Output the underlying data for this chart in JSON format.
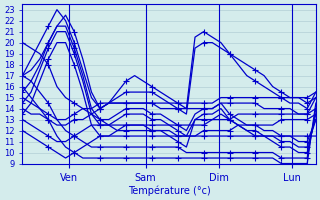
{
  "xlabel": "Température (°c)",
  "xlim": [
    0,
    100
  ],
  "ylim": [
    9,
    23.5
  ],
  "yticks": [
    9,
    10,
    11,
    12,
    13,
    14,
    15,
    16,
    17,
    18,
    19,
    20,
    21,
    22,
    23
  ],
  "xtick_positions": [
    16,
    42,
    67,
    92
  ],
  "xtick_labels": [
    "Ven",
    "Sam",
    "Dim",
    "Lun"
  ],
  "bg_color": "#d4ecec",
  "grid_color": "#aac8d0",
  "line_color": "#0000cc",
  "marker": "+",
  "markersize": 4,
  "linewidth": 0.9,
  "series": [
    [
      17.0,
      18.5,
      20.0,
      21.5,
      23.0,
      22.0,
      20.0,
      17.5,
      15.0,
      14.0,
      14.5,
      15.5,
      16.5,
      17.0,
      16.5,
      16.0,
      15.5,
      15.0,
      14.5,
      14.0,
      20.5,
      21.0,
      20.5,
      20.0,
      19.0,
      18.0,
      17.0,
      16.5,
      16.0,
      15.5,
      15.0,
      14.5,
      14.5,
      14.0,
      15.5
    ],
    [
      17.0,
      17.5,
      18.5,
      20.0,
      21.5,
      22.5,
      21.0,
      18.5,
      15.5,
      14.0,
      14.5,
      15.0,
      15.5,
      15.5,
      15.5,
      15.5,
      15.0,
      14.5,
      14.0,
      13.5,
      19.5,
      20.0,
      20.0,
      19.5,
      19.0,
      18.5,
      18.0,
      17.5,
      17.0,
      16.0,
      15.5,
      15.0,
      15.0,
      14.5,
      15.0
    ],
    [
      15.5,
      16.5,
      18.0,
      20.0,
      21.5,
      21.5,
      19.5,
      17.0,
      14.0,
      13.0,
      13.0,
      13.5,
      14.0,
      14.0,
      14.0,
      13.5,
      13.5,
      13.0,
      12.5,
      12.0,
      13.5,
      14.0,
      14.0,
      14.5,
      13.5,
      13.0,
      12.5,
      12.5,
      12.0,
      12.0,
      11.5,
      11.5,
      11.0,
      11.0,
      13.0
    ],
    [
      14.5,
      15.5,
      17.5,
      19.5,
      21.0,
      21.0,
      19.0,
      16.5,
      13.5,
      12.5,
      12.5,
      13.0,
      13.5,
      13.5,
      13.5,
      13.0,
      13.0,
      12.5,
      12.0,
      11.5,
      13.0,
      13.5,
      13.5,
      14.0,
      13.0,
      12.5,
      12.0,
      12.0,
      11.5,
      11.5,
      11.0,
      11.0,
      10.5,
      10.5,
      13.0
    ],
    [
      13.5,
      14.5,
      16.5,
      18.5,
      20.0,
      20.0,
      18.0,
      15.5,
      12.5,
      11.5,
      11.5,
      12.0,
      12.5,
      12.5,
      12.5,
      12.0,
      12.0,
      11.5,
      11.0,
      10.5,
      13.0,
      13.0,
      13.0,
      13.5,
      13.0,
      12.5,
      12.0,
      11.5,
      11.5,
      11.0,
      10.5,
      10.5,
      10.0,
      10.0,
      13.5
    ],
    [
      14.0,
      13.5,
      13.5,
      13.0,
      12.5,
      12.5,
      13.0,
      13.0,
      13.5,
      14.0,
      14.5,
      14.5,
      14.5,
      14.5,
      14.5,
      14.5,
      14.5,
      14.5,
      14.5,
      14.5,
      14.5,
      14.5,
      14.5,
      15.0,
      15.0,
      15.0,
      15.0,
      15.0,
      15.0,
      15.0,
      15.0,
      15.0,
      15.0,
      15.0,
      15.5
    ],
    [
      15.0,
      14.5,
      14.0,
      13.5,
      13.0,
      13.0,
      13.5,
      14.0,
      14.0,
      14.5,
      14.5,
      14.5,
      14.5,
      14.5,
      14.5,
      14.5,
      14.0,
      14.0,
      14.0,
      14.0,
      14.0,
      14.0,
      14.0,
      14.5,
      14.5,
      14.5,
      14.5,
      14.5,
      14.0,
      14.0,
      14.0,
      14.0,
      13.5,
      13.5,
      15.0
    ],
    [
      13.0,
      12.5,
      12.0,
      11.5,
      11.0,
      11.0,
      11.5,
      12.0,
      12.5,
      12.5,
      12.5,
      12.5,
      12.5,
      12.5,
      12.5,
      12.5,
      12.5,
      12.5,
      12.5,
      12.5,
      12.5,
      12.5,
      13.0,
      13.0,
      13.0,
      13.5,
      13.5,
      13.5,
      13.5,
      13.5,
      13.5,
      13.5,
      13.5,
      13.5,
      14.0
    ],
    [
      12.0,
      11.5,
      11.0,
      10.5,
      10.0,
      9.5,
      10.0,
      10.5,
      11.0,
      11.5,
      11.5,
      11.5,
      11.5,
      11.5,
      11.5,
      11.5,
      11.5,
      11.5,
      11.5,
      11.5,
      11.5,
      12.0,
      12.0,
      12.0,
      12.0,
      12.5,
      12.5,
      12.5,
      12.5,
      12.5,
      13.0,
      13.0,
      13.0,
      13.0,
      13.5
    ],
    [
      20.0,
      19.5,
      19.0,
      18.0,
      16.0,
      15.0,
      14.5,
      14.0,
      13.5,
      13.0,
      12.5,
      12.0,
      12.0,
      12.0,
      12.0,
      12.0,
      12.0,
      12.0,
      11.5,
      11.5,
      11.5,
      11.5,
      11.5,
      11.5,
      11.5,
      11.5,
      11.5,
      11.5,
      11.5,
      11.5,
      11.5,
      11.5,
      11.5,
      11.5,
      11.5
    ],
    [
      17.0,
      16.5,
      15.5,
      14.5,
      13.0,
      12.0,
      11.5,
      11.0,
      10.5,
      10.5,
      10.5,
      10.5,
      10.5,
      10.5,
      10.5,
      10.5,
      10.5,
      10.5,
      10.5,
      10.0,
      10.0,
      10.0,
      10.0,
      10.0,
      10.0,
      10.0,
      10.0,
      10.0,
      10.0,
      10.0,
      9.5,
      9.5,
      9.5,
      9.5,
      14.0
    ],
    [
      16.0,
      15.0,
      14.0,
      13.0,
      11.5,
      10.5,
      10.0,
      9.5,
      9.5,
      9.5,
      9.5,
      9.5,
      9.5,
      9.5,
      9.5,
      9.5,
      9.5,
      9.5,
      9.5,
      9.5,
      9.5,
      9.5,
      9.5,
      9.5,
      9.5,
      9.5,
      9.5,
      9.5,
      9.5,
      9.5,
      9.0,
      9.0,
      9.0,
      9.0,
      14.5
    ]
  ]
}
